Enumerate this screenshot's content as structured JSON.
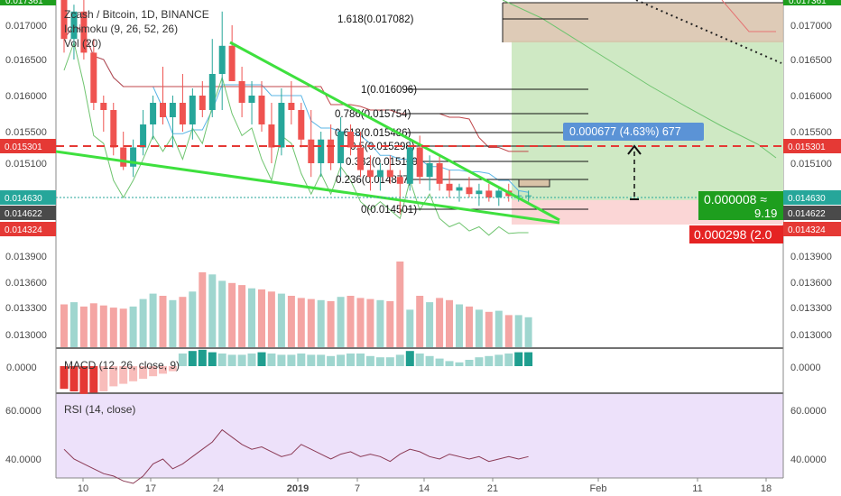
{
  "legend": {
    "title": "Zcash / Bitcoin, 1D, BINANCE",
    "ichimoku": "Ichimoku (9, 26, 52, 26)",
    "vol": "Vol (20)",
    "macd": "MACD (12, 26, close, 9)",
    "rsi": "RSI (14, close)"
  },
  "price_axis": {
    "ticks": [
      "0.017000",
      "0.016500",
      "0.016000",
      "0.015500",
      "0.015100",
      "0.014600",
      "0.013900",
      "0.013600",
      "0.013300",
      "0.013000"
    ],
    "top_tag": "0.017361",
    "tags": [
      {
        "value": "0.015301",
        "color": "#e53935",
        "side": "both"
      },
      {
        "value": "0.014630",
        "color": "#26a69a",
        "side": "both"
      },
      {
        "value": "0.014622",
        "color": "#4a4a4a",
        "side": "both"
      },
      {
        "value": "0.014324",
        "color": "#e53935",
        "side": "both"
      }
    ]
  },
  "macd_axis": {
    "ticks": [
      "0.0000",
      "0.0000"
    ]
  },
  "rsi_axis": {
    "ticks": [
      "60.0000",
      "40.0000"
    ]
  },
  "time_axis": {
    "ticks": [
      "10",
      "17",
      "24",
      "2019",
      "7",
      "14",
      "21",
      "Feb",
      "11",
      "18"
    ]
  },
  "fib_levels": [
    {
      "label": "1.618(0.017082)"
    },
    {
      "label": "1(0.016096)"
    },
    {
      "label": "0.786(0.015754)"
    },
    {
      "label": "0.618(0.015486)"
    },
    {
      "label": "0.5(0.015298)"
    },
    {
      "label": "0.382(0.015110)"
    },
    {
      "label": "0.236(0.014877)"
    },
    {
      "label": "0(0.014501)"
    }
  ],
  "position": {
    "target_box": "0.000677 (4.63%) 677",
    "current_box_line1": "0.000008 ≈",
    "current_box_line2": "9.19",
    "stop_box": "0.000298 (2.0"
  },
  "colors": {
    "up": "#26a69a",
    "down": "#ef5350",
    "trend": "#3ee03e",
    "rsi_bg": "#ede1fa"
  },
  "chart_data": {
    "type": "candlestick",
    "title": "Zcash / Bitcoin, 1D, BINANCE",
    "x": [
      "Dec 7",
      "Dec 8",
      "Dec 9",
      "Dec 10",
      "Dec 11",
      "Dec 12",
      "Dec 13",
      "Dec 14",
      "Dec 15",
      "Dec 16",
      "Dec 17",
      "Dec 18",
      "Dec 19",
      "Dec 20",
      "Dec 21",
      "Dec 22",
      "Dec 23",
      "Dec 24",
      "Dec 25",
      "Dec 26",
      "Dec 27",
      "Dec 28",
      "Dec 29",
      "Dec 30",
      "Dec 31",
      "Jan 1",
      "Jan 2",
      "Jan 3",
      "Jan 4",
      "Jan 5",
      "Jan 6",
      "Jan 7",
      "Jan 8",
      "Jan 9",
      "Jan 10",
      "Jan 11",
      "Jan 12",
      "Jan 13",
      "Jan 14",
      "Jan 15",
      "Jan 16",
      "Jan 17",
      "Jan 18",
      "Jan 19",
      "Jan 20",
      "Jan 21",
      "Jan 22",
      "Jan 23"
    ],
    "ohlc": [
      [
        0.01745,
        0.0177,
        0.0166,
        0.0168
      ],
      [
        0.0168,
        0.0173,
        0.0165,
        0.0172
      ],
      [
        0.0172,
        0.0174,
        0.0165,
        0.0166
      ],
      [
        0.0166,
        0.0168,
        0.0158,
        0.0159
      ],
      [
        0.0159,
        0.016,
        0.0155,
        0.0158
      ],
      [
        0.0158,
        0.0159,
        0.0152,
        0.0153
      ],
      [
        0.0153,
        0.0155,
        0.015,
        0.01505
      ],
      [
        0.01505,
        0.0154,
        0.0149,
        0.0153
      ],
      [
        0.0153,
        0.0158,
        0.0152,
        0.0156
      ],
      [
        0.0156,
        0.016,
        0.0154,
        0.0159
      ],
      [
        0.0159,
        0.0164,
        0.0156,
        0.0157
      ],
      [
        0.0157,
        0.016,
        0.0153,
        0.0159
      ],
      [
        0.0159,
        0.0163,
        0.0155,
        0.0156
      ],
      [
        0.0156,
        0.0161,
        0.0154,
        0.016
      ],
      [
        0.016,
        0.0162,
        0.0157,
        0.0158
      ],
      [
        0.0158,
        0.0168,
        0.0157,
        0.0163
      ],
      [
        0.0163,
        0.0172,
        0.0158,
        0.0167
      ],
      [
        0.0167,
        0.017,
        0.0162,
        0.0162
      ],
      [
        0.0162,
        0.0164,
        0.0157,
        0.0159
      ],
      [
        0.0159,
        0.0162,
        0.0156,
        0.016
      ],
      [
        0.016,
        0.0162,
        0.0155,
        0.0156
      ],
      [
        0.0156,
        0.0159,
        0.0151,
        0.0153
      ],
      [
        0.0153,
        0.0161,
        0.0152,
        0.0159
      ],
      [
        0.0159,
        0.0162,
        0.0156,
        0.0158
      ],
      [
        0.0158,
        0.0159,
        0.0153,
        0.0154
      ],
      [
        0.0154,
        0.0158,
        0.0149,
        0.0151
      ],
      [
        0.0151,
        0.0155,
        0.0149,
        0.0154
      ],
      [
        0.0154,
        0.0156,
        0.015,
        0.0151
      ],
      [
        0.0151,
        0.0157,
        0.0149,
        0.0155
      ],
      [
        0.0155,
        0.0156,
        0.0152,
        0.0153
      ],
      [
        0.0153,
        0.0155,
        0.0149,
        0.015
      ],
      [
        0.015,
        0.0152,
        0.0147,
        0.0149
      ],
      [
        0.0149,
        0.0151,
        0.0147,
        0.015
      ],
      [
        0.015,
        0.0152,
        0.0148,
        0.0149
      ],
      [
        0.0149,
        0.015,
        0.0144,
        0.0148
      ],
      [
        0.0148,
        0.0154,
        0.0147,
        0.0153
      ],
      [
        0.0153,
        0.01545,
        0.0148,
        0.0149
      ],
      [
        0.0149,
        0.0152,
        0.0147,
        0.0151
      ],
      [
        0.0151,
        0.0152,
        0.0147,
        0.0148
      ],
      [
        0.0148,
        0.015,
        0.0146,
        0.0147
      ],
      [
        0.0147,
        0.0148,
        0.01455,
        0.01475
      ],
      [
        0.01475,
        0.0149,
        0.0146,
        0.01465
      ],
      [
        0.01465,
        0.0148,
        0.0145,
        0.0147
      ],
      [
        0.0147,
        0.0148,
        0.01455,
        0.0146
      ],
      [
        0.0146,
        0.01475,
        0.0145,
        0.0147
      ],
      [
        0.0147,
        0.0148,
        0.01455,
        0.01462
      ],
      [
        0.01462,
        0.0147,
        0.01455,
        0.01463
      ],
      [
        0.01463,
        0.0147,
        0.01455,
        0.01463
      ]
    ],
    "volume": [
      40,
      42,
      38,
      41,
      39,
      37,
      36,
      38,
      45,
      50,
      48,
      44,
      47,
      52,
      70,
      68,
      62,
      60,
      58,
      55,
      54,
      52,
      50,
      48,
      46,
      45,
      44,
      43,
      47,
      48,
      46,
      45,
      44,
      43,
      80,
      35,
      48,
      42,
      46,
      44,
      40,
      38,
      35,
      33,
      34,
      30,
      30,
      28
    ],
    "macd_hist": [
      -18,
      -20,
      -22,
      -21,
      -20,
      -16,
      -14,
      -12,
      -10,
      -8,
      -6,
      -4,
      10,
      12,
      13,
      11,
      10,
      9,
      9,
      10,
      11,
      10,
      9,
      9,
      10,
      9,
      9,
      8,
      9,
      10,
      10,
      8,
      7,
      7,
      9,
      12,
      10,
      8,
      6,
      4,
      3,
      5,
      7,
      8,
      9,
      10,
      11,
      11
    ],
    "rsi": [
      44,
      40,
      38,
      36,
      34,
      33,
      31,
      30,
      33,
      38,
      40,
      36,
      38,
      41,
      44,
      47,
      52,
      49,
      46,
      44,
      45,
      43,
      41,
      42,
      46,
      44,
      42,
      40,
      42,
      43,
      41,
      42,
      41,
      39,
      42,
      44,
      43,
      41,
      40,
      42,
      41,
      40,
      41,
      39,
      40,
      41,
      40,
      41
    ],
    "ylim": [
      0.0128,
      0.0175
    ]
  }
}
